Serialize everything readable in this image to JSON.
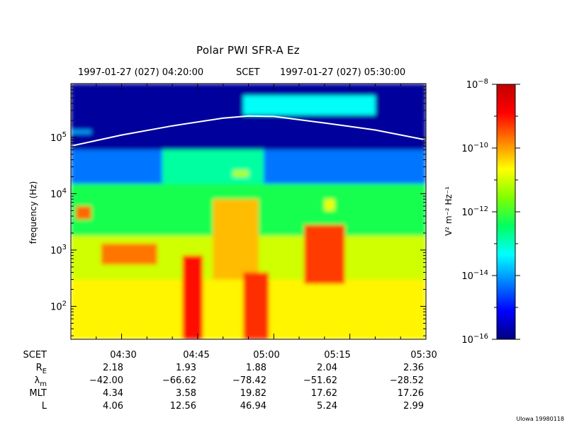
{
  "chart_data": {
    "type": "heatmap",
    "title": "Polar PWI SFR-A Ez",
    "header": {
      "start": "1997-01-27 (027) 04:20:00",
      "scet_label": "SCET",
      "end": "1997-01-27 (027) 05:30:00"
    },
    "ylabel": "frequency (Hz)",
    "y_scale": "log",
    "ylim": [
      26,
      900000
    ],
    "y_ticks": [
      {
        "value": 100,
        "base": "10",
        "exp": "2"
      },
      {
        "value": 1000,
        "base": "10",
        "exp": "3"
      },
      {
        "value": 10000,
        "base": "10",
        "exp": "4"
      },
      {
        "value": 100000,
        "base": "10",
        "exp": "5"
      }
    ],
    "xlim": [
      "04:20",
      "05:30"
    ],
    "x_ticks": [
      "04:30",
      "04:45",
      "05:00",
      "05:15",
      "05:30"
    ],
    "colorbar": {
      "label": "V² m⁻² Hz⁻¹",
      "scale": "log",
      "range": [
        1e-16,
        1e-08
      ],
      "ticks": [
        {
          "value": 1e-08,
          "base": "10",
          "exp": "−8"
        },
        {
          "value": 1e-10,
          "base": "10",
          "exp": "−10"
        },
        {
          "value": 1e-12,
          "base": "10",
          "exp": "−12"
        },
        {
          "value": 1e-14,
          "base": "10",
          "exp": "−14"
        },
        {
          "value": 1e-16,
          "base": "10",
          "exp": "−16"
        }
      ],
      "colors": [
        "#00007f",
        "#0000ff",
        "#0080ff",
        "#00ffff",
        "#00ff60",
        "#80ff00",
        "#ffff00",
        "#ff8000",
        "#ff0000",
        "#c00000"
      ]
    },
    "regions": [
      {
        "t": [
          0,
          70
        ],
        "f": [
          26,
          900000
        ],
        "level": -15.5
      },
      {
        "t": [
          0,
          70
        ],
        "f": [
          60000,
          900000
        ],
        "level": -15.8
      },
      {
        "t": [
          0,
          70
        ],
        "f": [
          15000,
          60000
        ],
        "level": -14.3
      },
      {
        "t": [
          0,
          70
        ],
        "f": [
          1800,
          15000
        ],
        "level": -12.3
      },
      {
        "t": [
          0,
          70
        ],
        "f": [
          300,
          1800
        ],
        "level": -11.0
      },
      {
        "t": [
          0,
          70
        ],
        "f": [
          26,
          300
        ],
        "level": -10.6
      },
      {
        "t": [
          18,
          38
        ],
        "f": [
          15000,
          60000
        ],
        "level": -12.8
      },
      {
        "t": [
          28,
          37
        ],
        "f": [
          300,
          8000
        ],
        "level": -10.2
      },
      {
        "t": [
          6,
          17
        ],
        "f": [
          550,
          1300
        ],
        "level": -9.7
      },
      {
        "t": [
          1,
          4
        ],
        "f": [
          3500,
          6000
        ],
        "level": -9.6
      },
      {
        "t": [
          22,
          26
        ],
        "f": [
          26,
          800
        ],
        "level": -9.0
      },
      {
        "t": [
          34,
          39
        ],
        "f": [
          26,
          400
        ],
        "level": -9.2
      },
      {
        "t": [
          46,
          54
        ],
        "f": [
          250,
          2800
        ],
        "level": -9.3
      },
      {
        "t": [
          50,
          52
        ],
        "f": [
          5000,
          8000
        ],
        "level": -10.8
      },
      {
        "t": [
          32,
          35
        ],
        "f": [
          20000,
          26000
        ],
        "level": -11.2
      },
      {
        "t": [
          34,
          60
        ],
        "f": [
          250000,
          550000
        ],
        "level": -13.3
      },
      {
        "t": [
          0,
          4
        ],
        "f": [
          115000,
          135000
        ],
        "level": -14.0
      }
    ],
    "series": [
      {
        "type": "line",
        "t": [
          0,
          10,
          20,
          30,
          35,
          40,
          50,
          60,
          70
        ],
        "f": [
          70000,
          110000,
          160000,
          220000,
          240000,
          235000,
          180000,
          135000,
          90000
        ]
      }
    ]
  },
  "ephemeris": {
    "rows": [
      {
        "label": "SCET",
        "sub": "",
        "values": [
          "04:30",
          "04:45",
          "05:00",
          "05:15",
          "05:30"
        ]
      },
      {
        "label": "R",
        "sub": "E",
        "values": [
          "2.18",
          "1.93",
          "1.88",
          "2.04",
          "2.36"
        ]
      },
      {
        "label": "λ",
        "sub": "m",
        "values": [
          "−42.00",
          "−66.62",
          "−78.42",
          "−51.62",
          "−28.52"
        ]
      },
      {
        "label": "MLT",
        "sub": "",
        "values": [
          "4.34",
          "3.58",
          "19.82",
          "17.62",
          "17.26"
        ]
      },
      {
        "label": "L",
        "sub": "",
        "values": [
          "4.06",
          "12.56",
          "46.94",
          "5.24",
          "2.99"
        ]
      }
    ]
  },
  "credit": "Ulowa 19980118"
}
